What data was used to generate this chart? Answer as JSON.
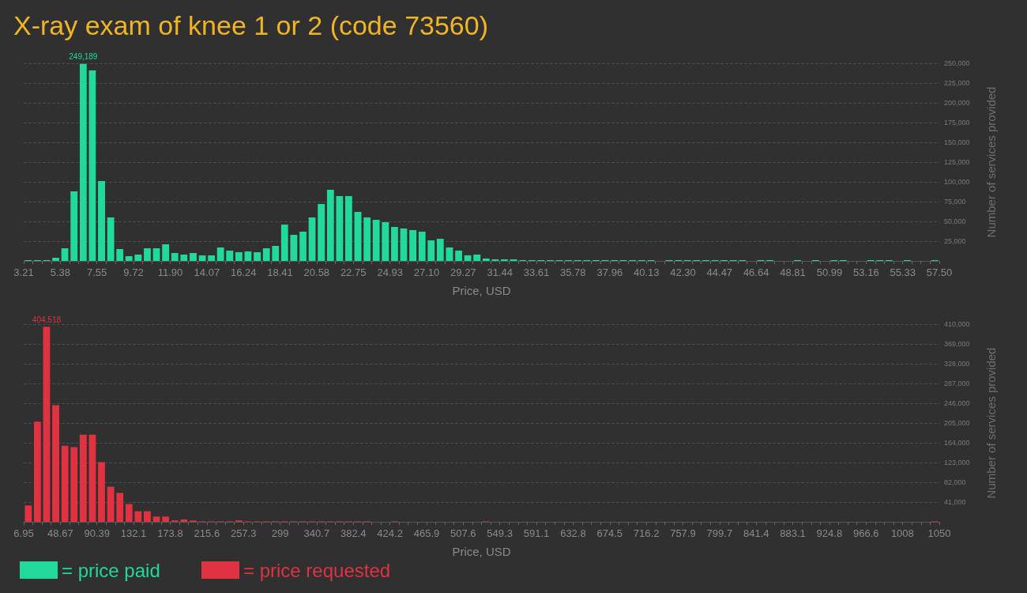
{
  "chart_data": [
    {
      "type": "histogram",
      "title": "X-ray exam of knee 1 or 2 (code 73560)",
      "xlabel": "Price, USD",
      "ylabel": "Number of services provided",
      "bins": [
        3.21,
        3.75,
        4.3,
        4.84,
        5.38,
        5.92,
        6.47,
        7.01,
        7.55,
        8.1,
        8.64,
        9.18,
        9.72,
        10.27,
        10.81,
        11.35,
        11.9,
        12.44,
        12.98,
        13.53,
        14.07,
        14.61,
        15.15,
        15.7,
        16.24,
        16.78,
        17.33,
        17.87,
        18.41,
        18.95,
        19.5,
        20.04,
        20.58,
        21.13,
        21.67,
        22.21,
        22.75,
        23.3,
        23.84,
        24.38,
        24.93,
        25.47,
        26.01,
        26.56,
        27.1,
        27.64,
        28.18,
        28.73,
        29.27,
        29.81,
        30.36,
        30.9,
        31.44,
        31.98,
        32.53,
        33.07,
        33.61,
        34.16,
        34.7,
        35.24,
        35.78,
        36.33,
        36.87,
        37.41,
        37.96,
        38.5,
        39.04,
        39.58,
        40.13,
        40.67,
        41.21,
        41.76,
        42.3,
        42.84,
        43.38,
        43.93,
        44.47,
        45.01,
        45.56,
        46.1,
        46.64,
        47.18,
        47.73,
        48.27,
        48.81,
        49.36,
        49.9,
        50.44,
        50.99,
        51.53,
        52.07,
        52.61,
        53.16,
        53.7,
        54.24,
        54.79,
        55.33,
        55.87,
        56.41,
        56.96,
        57.5
      ],
      "series": [
        {
          "name": "= price paid",
          "color": "#21d99b",
          "values": [
            1000,
            1000,
            1000,
            4000,
            16000,
            88000,
            249189,
            241000,
            101000,
            55000,
            15000,
            6000,
            8000,
            16000,
            16000,
            21000,
            10000,
            8000,
            10000,
            7000,
            7000,
            17000,
            13000,
            11000,
            12000,
            11000,
            16000,
            19000,
            46000,
            33000,
            37000,
            55000,
            72000,
            90000,
            82000,
            82000,
            62000,
            55000,
            52000,
            49000,
            43000,
            41000,
            39000,
            37000,
            26000,
            28000,
            17000,
            13000,
            7000,
            8000,
            3000,
            2000,
            2000,
            2000,
            1000,
            1000,
            1000,
            1000,
            1000,
            1000,
            1000,
            1000,
            1000,
            1000,
            1000,
            1000,
            1000,
            1000,
            1000,
            0,
            1000,
            1000,
            1000,
            1000,
            1000,
            1000,
            1000,
            1000,
            1000,
            0,
            1000,
            1000,
            0,
            0,
            1000,
            0,
            1000,
            0,
            1000,
            1000,
            0,
            0,
            1000,
            1000,
            1000,
            0,
            1000,
            0,
            0,
            1000
          ],
          "value_labels": [
            null,
            null,
            null,
            null,
            null,
            null,
            "249,189",
            null,
            null,
            null,
            null,
            null,
            null,
            null,
            null,
            null,
            null,
            null,
            null,
            null,
            null,
            null,
            null,
            null,
            null,
            null,
            null,
            null,
            null,
            null,
            null,
            null,
            null,
            null,
            null,
            null,
            null,
            null,
            null,
            null,
            null,
            null,
            null,
            null,
            null,
            null,
            null,
            null,
            null,
            null,
            null,
            null,
            null,
            null,
            null,
            null,
            null,
            null,
            null,
            null,
            null,
            null,
            null,
            null,
            null,
            null,
            null,
            null,
            null,
            null,
            null,
            null,
            null,
            null,
            null,
            null,
            null,
            null,
            null,
            null,
            null,
            null,
            null,
            null,
            null,
            null,
            null,
            null,
            null,
            null,
            null,
            null,
            null,
            null,
            null,
            null,
            null,
            null,
            null,
            null
          ]
        }
      ],
      "xlim": [
        3.21,
        57.5
      ],
      "xticks": [
        3.21,
        5.38,
        7.55,
        9.72,
        {
          "value": 11.9,
          "label": "11.90"
        },
        14.07,
        16.24,
        18.41,
        20.58,
        22.75,
        24.93,
        {
          "value": 27.1,
          "label": "27.10"
        },
        29.27,
        31.44,
        33.61,
        35.78,
        37.96,
        40.13,
        {
          "value": 42.3,
          "label": "42.30"
        },
        44.47,
        46.64,
        48.81,
        50.99,
        53.16,
        55.33,
        {
          "value": 57.5,
          "label": "57.50"
        }
      ],
      "ylim": [
        0,
        250000
      ],
      "yticks": [
        {
          "value": 25000,
          "label": "25,000"
        },
        {
          "value": 50000,
          "label": "50,000"
        },
        {
          "value": 75000,
          "label": "75,000"
        },
        {
          "value": 100000,
          "label": "100,000"
        },
        {
          "value": 125000,
          "label": "125,000"
        },
        {
          "value": 150000,
          "label": "150,000"
        },
        {
          "value": 175000,
          "label": "175,000"
        },
        {
          "value": 200000,
          "label": "200,000"
        },
        {
          "value": 225000,
          "label": "225,000"
        },
        {
          "value": 250000,
          "label": "250,000"
        }
      ],
      "grid": "y",
      "legend": "bottom left"
    },
    {
      "type": "histogram",
      "xlabel": "Price, USD",
      "ylabel": "Number of services provided",
      "bins": [
        6.95,
        17.4,
        27.8,
        38.2,
        48.7,
        59.1,
        69.5,
        80.0,
        90.4,
        100.8,
        111.3,
        121.7,
        132.1,
        142.5,
        153.0,
        163.4,
        173.8,
        184.3,
        194.7,
        205.1,
        215.6,
        226.0,
        236.4,
        246.9,
        257.3,
        267.7,
        278.1,
        288.6,
        299.0,
        309.4,
        319.9,
        330.3,
        340.7,
        351.2,
        361.6,
        372.0,
        382.4,
        392.9,
        403.3,
        413.7,
        424.2,
        434.6,
        445.0,
        455.5,
        465.9,
        476.3,
        486.8,
        497.2,
        507.6,
        518.0,
        528.5,
        538.9,
        549.3,
        559.8,
        570.2,
        580.6,
        591.1,
        601.5,
        611.9,
        622.4,
        632.8,
        643.2,
        653.6,
        664.1,
        674.5,
        684.9,
        695.4,
        705.8,
        716.2,
        726.7,
        737.1,
        747.5,
        757.9,
        768.4,
        778.8,
        789.2,
        799.7,
        810.1,
        820.5,
        831.0,
        841.4,
        851.8,
        862.3,
        872.7,
        883.1,
        893.5,
        904.0,
        914.4,
        924.8,
        935.3,
        945.7,
        956.1,
        966.6,
        977.0,
        987.4,
        997.9,
        1008.3,
        1018.7,
        1029.1,
        1039.6,
        1050
      ],
      "series": [
        {
          "name": "= price requested",
          "color": "#e03241",
          "values": [
            34000,
            208000,
            404518,
            242000,
            158000,
            155000,
            181000,
            181000,
            124000,
            73000,
            60000,
            37000,
            22000,
            22000,
            11000,
            11000,
            3000,
            5000,
            3000,
            1000,
            1000,
            1000,
            1000,
            3000,
            1000,
            1000,
            1000,
            1000,
            1000,
            1000,
            1000,
            1000,
            1000,
            1000,
            1000,
            1000,
            1000,
            1000,
            0,
            0,
            1000,
            0,
            0,
            0,
            0,
            0,
            0,
            0,
            0,
            0,
            1000,
            0,
            0,
            0,
            0,
            0,
            0,
            0,
            0,
            0,
            0,
            0,
            0,
            0,
            0,
            0,
            0,
            0,
            0,
            0,
            0,
            0,
            0,
            0,
            0,
            0,
            0,
            0,
            0,
            0,
            0,
            0,
            0,
            0,
            0,
            0,
            0,
            0,
            0,
            0,
            0,
            0,
            0,
            0,
            0,
            0,
            0,
            0,
            0,
            1000
          ],
          "value_labels": [
            null,
            null,
            "404,518",
            null,
            null,
            null,
            null,
            null,
            null,
            null,
            null,
            null,
            null,
            null,
            null,
            null,
            null,
            null,
            null,
            null,
            null,
            null,
            null,
            null,
            null,
            null,
            null,
            null,
            null,
            null,
            null,
            null,
            null,
            null,
            null,
            null,
            null,
            null,
            null,
            null,
            null,
            null,
            null,
            null,
            null,
            null,
            null,
            null,
            null,
            null,
            null,
            null,
            null,
            null,
            null,
            null,
            null,
            null,
            null,
            null,
            null,
            null,
            null,
            null,
            null,
            null,
            null,
            null,
            null,
            null,
            null,
            null,
            null,
            null,
            null,
            null,
            null,
            null,
            null,
            null,
            null,
            null,
            null,
            null,
            null,
            null,
            null,
            null,
            null,
            null,
            null,
            null,
            null,
            null,
            null,
            null,
            null,
            null,
            null,
            null
          ]
        }
      ],
      "xlim": [
        6.95,
        1050
      ],
      "xticks": [
        6.95,
        48.67,
        90.39,
        132.1,
        173.8,
        215.6,
        257.3,
        299,
        340.7,
        382.4,
        424.2,
        465.9,
        507.6,
        549.3,
        591.1,
        632.8,
        674.5,
        716.2,
        757.9,
        799.7,
        841.4,
        883.1,
        924.8,
        966.6,
        1008,
        1050
      ],
      "ylim": [
        0,
        410000
      ],
      "yticks": [
        {
          "value": 41000,
          "label": "41,000"
        },
        {
          "value": 82000,
          "label": "82,000"
        },
        {
          "value": 123000,
          "label": "123,000"
        },
        {
          "value": 164000,
          "label": "164,000"
        },
        {
          "value": 205000,
          "label": "205,000"
        },
        {
          "value": 246000,
          "label": "246,000"
        },
        {
          "value": 287000,
          "label": "287,000"
        },
        {
          "value": 328000,
          "label": "328,000"
        },
        {
          "value": 369000,
          "label": "369,000"
        },
        {
          "value": 410000,
          "label": "410,000"
        }
      ],
      "grid": "y",
      "legend": "bottom left"
    }
  ]
}
